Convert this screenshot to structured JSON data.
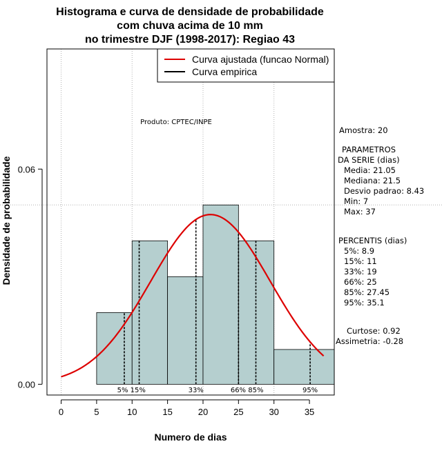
{
  "chart_data": {
    "type": "bar",
    "title_lines": [
      "Histograma e curva de densidade de probabilidade",
      "com chuva acima de 10 mm",
      "no trimestre DJF (1998-2017): Regiao 43"
    ],
    "xlabel": "Numero de dias",
    "ylabel": "Densidade de probabilidade",
    "xlim": [
      -2,
      38.5
    ],
    "ylim": [
      -0.003,
      0.0935
    ],
    "x_ticks": [
      0,
      5,
      10,
      15,
      20,
      25,
      30,
      35
    ],
    "x_tick_labels": [
      "0",
      "5",
      "10",
      "15",
      "20",
      "25",
      "30",
      "35"
    ],
    "y_ticks": [
      0.0,
      0.06
    ],
    "y_tick_labels": [
      "0.00",
      "0.06"
    ],
    "grid_x": [
      0,
      10,
      20,
      30
    ],
    "grid_y": 0.05,
    "bins": [
      {
        "start": 5,
        "end": 10,
        "density": 0.02
      },
      {
        "start": 10,
        "end": 15,
        "density": 0.04
      },
      {
        "start": 15,
        "end": 20,
        "density": 0.03
      },
      {
        "start": 20,
        "end": 25,
        "density": 0.05
      },
      {
        "start": 25,
        "end": 30,
        "density": 0.04
      },
      {
        "start": 30,
        "end": 38.5,
        "density": 0.0097
      }
    ],
    "bar_color": "#b5cfcf",
    "normal_curve": {
      "mean": 21.05,
      "sd": 8.43,
      "x_range": [
        0,
        37
      ],
      "color": "#dd0000",
      "name": "Curva ajustada (funcao Normal)"
    },
    "empirical_curve_name": "Curva empirica",
    "percentile_lines": [
      {
        "x": 8.9,
        "label": "5%"
      },
      {
        "x": 11,
        "label": "15%"
      },
      {
        "x": 19,
        "label": "33%"
      },
      {
        "x": 25,
        "label": "66%"
      },
      {
        "x": 27.45,
        "label": "85%"
      },
      {
        "x": 35.1,
        "label": "95%"
      }
    ],
    "percentile_label_rows": [
      {
        "x": 9.9,
        "text": "5% 15%"
      },
      {
        "x": 19,
        "text": "33%"
      },
      {
        "x": 26.2,
        "text": "66% 85%"
      },
      {
        "x": 35.1,
        "text": "95%"
      }
    ],
    "legend": {
      "position": "top-right"
    },
    "annotation_produto": "Produto: CPTEC/INPE",
    "info_lines": [
      "Amostra: 20",
      "PARAMETROS",
      "DA SERIE (dias)",
      "Media: 21.05",
      "Mediana: 21.5",
      "Desvio padrao: 8.43",
      "Min: 7",
      "Max: 37",
      "PERCENTIS (dias)",
      "5%: 8.9",
      "15%: 11",
      "33%: 19",
      "66%: 25",
      "85%: 27.45",
      "95%: 35.1",
      "Curtose: 0.92",
      "Assimetria: -0.28"
    ]
  }
}
